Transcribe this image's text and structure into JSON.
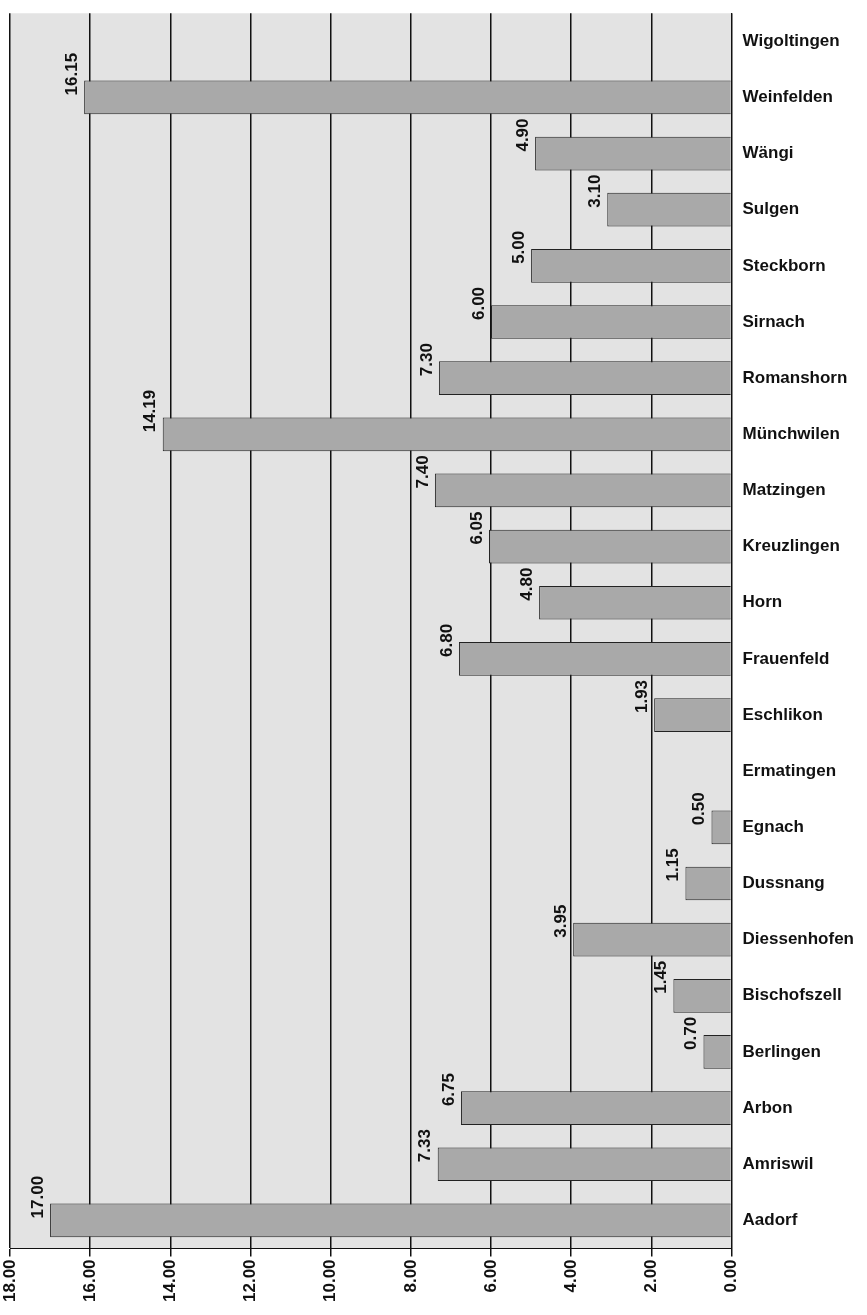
{
  "chart_data": {
    "type": "bar",
    "orientation": "horizontal",
    "categories": [
      "Wigoltingen",
      "Weinfelden",
      "Wängi",
      "Sulgen",
      "Steckborn",
      "Sirnach",
      "Romanshorn",
      "Münchwilen",
      "Matzingen",
      "Kreuzlingen",
      "Horn",
      "Frauenfeld",
      "Eschlikon",
      "Ermatingen",
      "Egnach",
      "Dussnang",
      "Diessenhofen",
      "Bischofszell",
      "Berlingen",
      "Arbon",
      "Amriswil",
      "Aadorf"
    ],
    "values": [
      null,
      16.15,
      4.9,
      3.1,
      5.0,
      6.0,
      7.3,
      14.19,
      7.4,
      6.05,
      4.8,
      6.8,
      1.93,
      null,
      0.5,
      1.15,
      3.95,
      1.45,
      0.7,
      6.75,
      7.33,
      17.0
    ],
    "value_labels": [
      null,
      "16.15",
      "4.90",
      "3.10",
      "5.00",
      "6.00",
      "7.30",
      "14.19",
      "7.40",
      "6.05",
      "4.80",
      "6.80",
      "1.93",
      null,
      "0.50",
      "1.15",
      "3.95",
      "1.45",
      "0.70",
      "6.75",
      "7.33",
      "17.00"
    ],
    "color": "#a9a9a9",
    "xlim": [
      18,
      0
    ],
    "xticks": [
      {
        "value": 18,
        "label": "18.00"
      },
      {
        "value": 16,
        "label": "16.00"
      },
      {
        "value": 14,
        "label": "14.00"
      },
      {
        "value": 12,
        "label": "12.00"
      },
      {
        "value": 10,
        "label": "10.00"
      },
      {
        "value": 8,
        "label": "8.00"
      },
      {
        "value": 6,
        "label": "6.00"
      },
      {
        "value": 4,
        "label": "4.00"
      },
      {
        "value": 2,
        "label": "2.00"
      },
      {
        "value": 0,
        "label": "0.00"
      }
    ],
    "grid": "x",
    "legend": false
  }
}
